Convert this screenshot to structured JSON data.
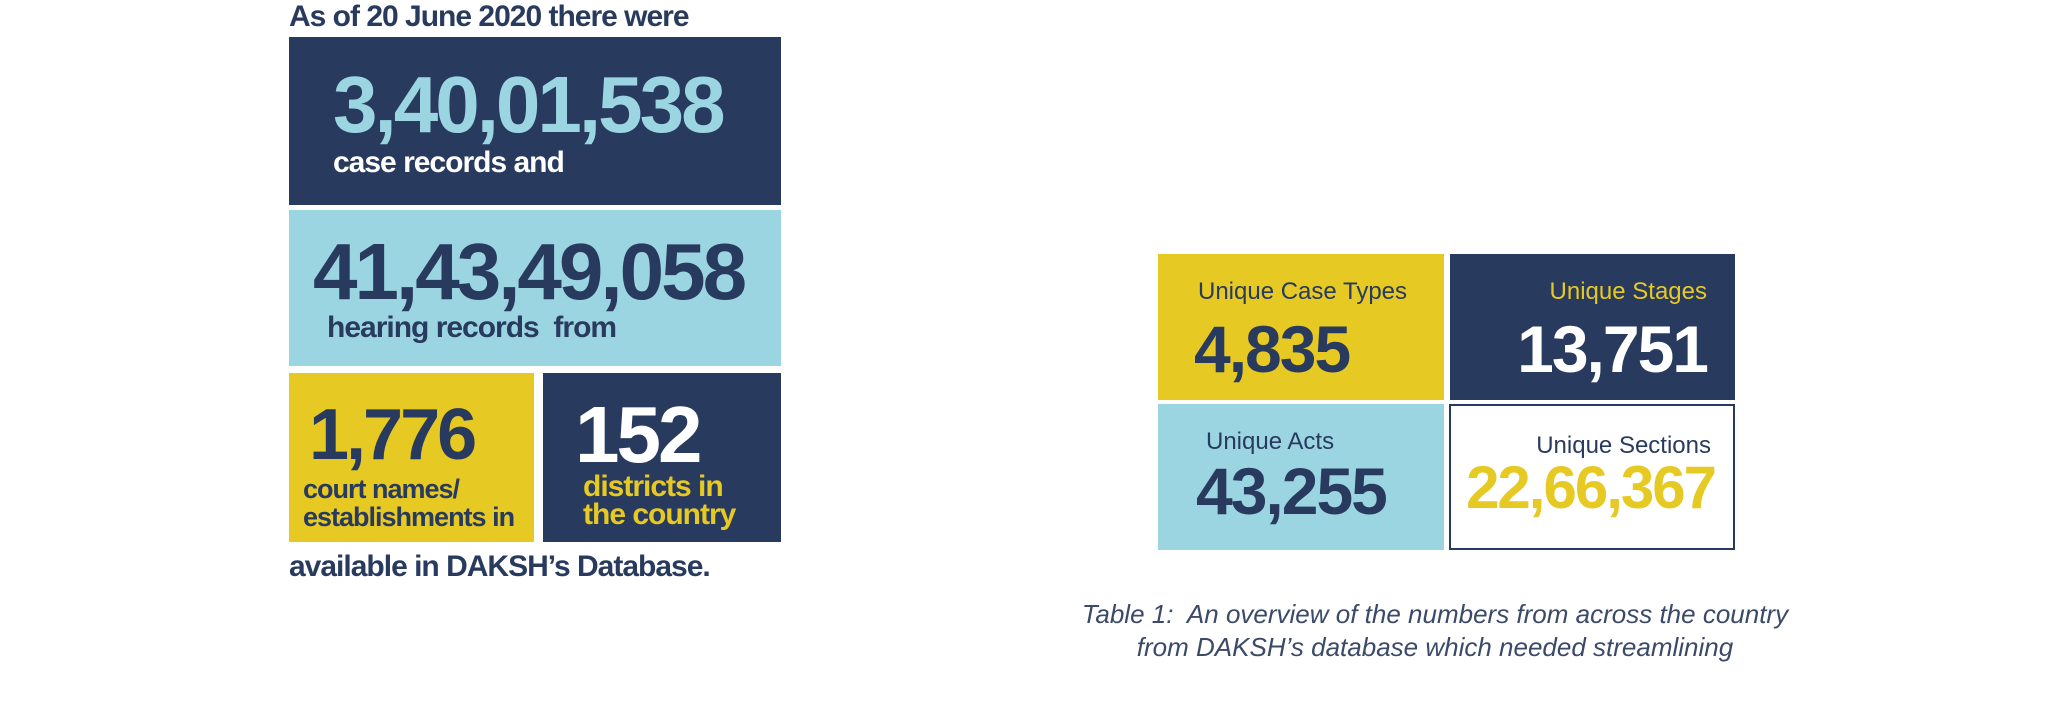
{
  "infographic": {
    "intro": "As of 20 June 2020 there were",
    "case_records": {
      "number": "3,40,01,538",
      "label": "case records and"
    },
    "hearing_records": {
      "number": "41,43,49,058",
      "label": "hearing records  from"
    },
    "courts": {
      "number": "1,776",
      "label_line1": "court names/",
      "label_line2": "establishments in"
    },
    "districts": {
      "number": "152",
      "label_line1": "districts in",
      "label_line2": "the country"
    },
    "outro": "available in DAKSH’s Database."
  },
  "table": {
    "case_types": {
      "label": "Unique Case Types",
      "value": "4,835"
    },
    "stages": {
      "label": "Unique Stages",
      "value": "13,751"
    },
    "acts": {
      "label": "Unique Acts",
      "value": "43,255"
    },
    "sections": {
      "label": "Unique Sections",
      "value": "22,66,367"
    }
  },
  "caption": {
    "line1": "Table 1:  An overview of the numbers from across the country",
    "line2": "from DAKSH’s database which needed streamlining"
  },
  "colors": {
    "navy": "#283a5e",
    "light_blue": "#9cd5e2",
    "yellow": "#e7c923",
    "white": "#ffffff"
  }
}
